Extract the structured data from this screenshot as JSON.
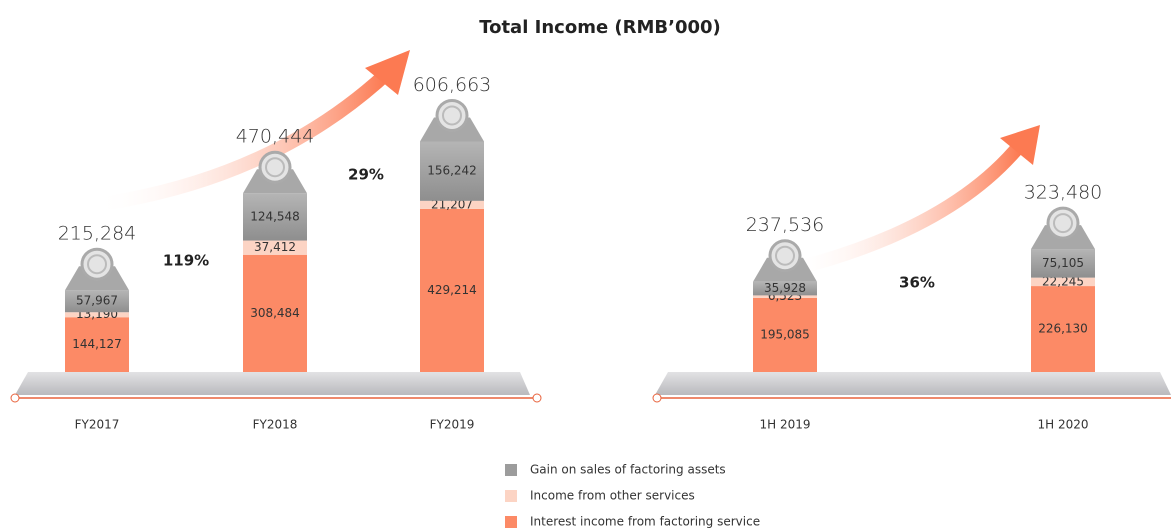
{
  "title": "Total Income (RMB’000)",
  "chart_data": [
    {
      "type": "bar",
      "stacked": true,
      "categories": [
        "FY2017",
        "FY2018",
        "FY2019"
      ],
      "series": [
        {
          "name": "Gain on sales of factoring assets",
          "color": "#9c9c9c",
          "values": [
            57967,
            124548,
            156242
          ],
          "value_labels": [
            "57,967",
            "124,548",
            "156,242"
          ]
        },
        {
          "name": "Income from other services",
          "color": "#fcd4c4",
          "values": [
            13190,
            37412,
            21207
          ],
          "value_labels": [
            "13,190",
            "37,412",
            "21,207"
          ]
        },
        {
          "name": "Interest income from factoring service",
          "color": "#fc8a66",
          "values": [
            144127,
            308484,
            429214
          ],
          "value_labels": [
            "144,127",
            "308,484",
            "429,214"
          ]
        }
      ],
      "totals": [
        215284,
        470444,
        606663
      ],
      "total_labels": [
        "215,284",
        "470,444",
        "606,663"
      ],
      "annotations": [
        "119%",
        "29%"
      ]
    },
    {
      "type": "bar",
      "stacked": true,
      "categories": [
        "1H 2019",
        "1H 2020"
      ],
      "series": [
        {
          "name": "Gain on sales of factoring assets",
          "color": "#9c9c9c",
          "values": [
            35928,
            75105
          ],
          "value_labels": [
            "35,928",
            "75,105"
          ]
        },
        {
          "name": "Income from other services",
          "color": "#fcd4c4",
          "values": [
            6523,
            22245
          ],
          "value_labels": [
            "6,523",
            "22,245"
          ]
        },
        {
          "name": "Interest income from factoring service",
          "color": "#fc8a66",
          "values": [
            195085,
            226130
          ],
          "value_labels": [
            "195,085",
            "226,130"
          ]
        }
      ],
      "totals": [
        237536,
        323480
      ],
      "total_labels": [
        "237,536",
        "323,480"
      ],
      "annotations": [
        "36%"
      ]
    }
  ]
}
